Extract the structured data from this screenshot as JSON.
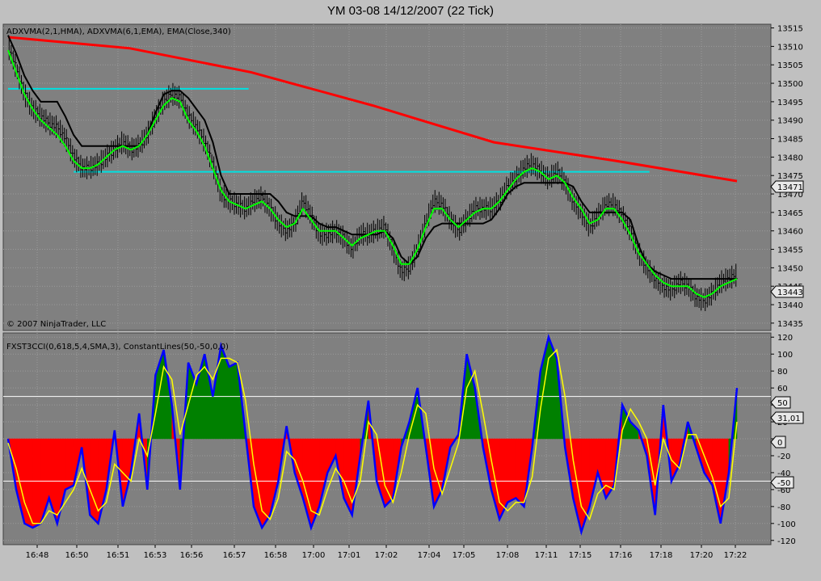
{
  "window": {
    "title": "YM 03-08  14/12/2007  (22 Tick)"
  },
  "price_panel": {
    "indicator_label": "ADXVMA(2,1,HMA), ADXVMA(6,1,EMA), EMA(Close,340)",
    "copyright": "© 2007 NinjaTrader, LLC",
    "badges": [
      "13471",
      "13443"
    ]
  },
  "cci_panel": {
    "indicator_label": "FXST3CCI(0,618,5,4,SMA,3), ConstantLines(50,-50,0,0)",
    "badges": [
      "50",
      "31,01",
      "0",
      "-50"
    ]
  },
  "colors": {
    "bg_panel": "#808080",
    "bars": "#000000",
    "fast_ma": "#00ff00",
    "slow_ma": "#000000",
    "ema": "#ff0000",
    "levels": "#00e0e0",
    "cci": "#0000ff",
    "signal": "#ffff00",
    "fill_pos": "#008000",
    "fill_neg": "#ff0000"
  },
  "chart_data": [
    {
      "type": "line",
      "x_ticks": [
        "16:48",
        "16:50",
        "16:51",
        "16:53",
        "16:56",
        "16:57",
        "16:58",
        "17:00",
        "17:01",
        "17:02",
        "17:04",
        "17:05",
        "17:08",
        "17:11",
        "17:15",
        "17:16",
        "17:18",
        "17:20",
        "17:22"
      ],
      "ylim": [
        13433,
        13516
      ],
      "y_ticks": [
        13435,
        13440,
        13445,
        13450,
        13455,
        13460,
        13465,
        13470,
        13475,
        13480,
        13485,
        13490,
        13495,
        13500,
        13505,
        13510,
        13515
      ],
      "horizontal_levels": [
        {
          "y": 13498.5,
          "x_from": 0,
          "x_to": 0.33
        },
        {
          "y": 13476,
          "x_from": 0.09,
          "x_to": 0.88
        }
      ],
      "series": [
        {
          "key": "close",
          "values": [
            13510,
            13504,
            13497,
            13493,
            13491,
            13489,
            13488,
            13485,
            13480,
            13477,
            13477,
            13478,
            13480,
            13482,
            13484,
            13482,
            13483,
            13486,
            13491,
            13495,
            13497,
            13496,
            13491,
            13488,
            13484,
            13478,
            13470,
            13468,
            13467,
            13466,
            13468,
            13469,
            13466,
            13462,
            13460,
            13462,
            13468,
            13464,
            13459,
            13459,
            13460,
            13458,
            13455,
            13459,
            13459,
            13460,
            13461,
            13455,
            13449,
            13450,
            13455,
            13462,
            13468,
            13467,
            13463,
            13460,
            13463,
            13466,
            13466,
            13466,
            13468,
            13472,
            13474,
            13477,
            13478,
            13476,
            13474,
            13476,
            13473,
            13468,
            13465,
            13461,
            13464,
            13467,
            13467,
            13464,
            13460,
            13454,
            13450,
            13447,
            13445,
            13444,
            13446,
            13445,
            13442,
            13441,
            13443,
            13446,
            13447,
            13448
          ]
        },
        {
          "key": "ma_fast",
          "values": [
            13509,
            13503,
            13497,
            13493,
            13490,
            13488,
            13486,
            13483,
            13479,
            13477,
            13477,
            13478,
            13480,
            13482,
            13483,
            13482,
            13483,
            13486,
            13490,
            13494,
            13496,
            13495,
            13490,
            13487,
            13483,
            13477,
            13471,
            13468,
            13467,
            13466,
            13467,
            13468,
            13466,
            13463,
            13461,
            13462,
            13466,
            13463,
            13460,
            13460,
            13460,
            13458,
            13456,
            13458,
            13459,
            13460,
            13460,
            13456,
            13451,
            13451,
            13455,
            13461,
            13466,
            13466,
            13463,
            13461,
            13463,
            13465,
            13466,
            13466,
            13468,
            13471,
            13474,
            13476,
            13477,
            13476,
            13474,
            13475,
            13473,
            13469,
            13466,
            13462,
            13463,
            13466,
            13466,
            13463,
            13459,
            13454,
            13451,
            13448,
            13446,
            13445,
            13445,
            13445,
            13443,
            13442,
            13443,
            13445,
            13446,
            13447
          ]
        },
        {
          "key": "ma_slow",
          "values": [
            13513,
            13508,
            13502,
            13498,
            13495,
            13495,
            13495,
            13491,
            13486,
            13483,
            13483,
            13483,
            13483,
            13483,
            13483,
            13483,
            13483,
            13486,
            13492,
            13497,
            13498,
            13498,
            13496,
            13493,
            13490,
            13484,
            13475,
            13470,
            13470,
            13470,
            13470,
            13470,
            13470,
            13468,
            13465,
            13464,
            13464,
            13464,
            13462,
            13461,
            13461,
            13460,
            13459,
            13459,
            13459,
            13459,
            13460,
            13458,
            13453,
            13451,
            13453,
            13458,
            13461,
            13462,
            13462,
            13462,
            13462,
            13462,
            13462,
            13463,
            13466,
            13470,
            13472,
            13473,
            13473,
            13473,
            13473,
            13473,
            13473,
            13472,
            13468,
            13465,
            13465,
            13465,
            13465,
            13465,
            13463,
            13456,
            13451,
            13449,
            13448,
            13447,
            13447,
            13447,
            13447,
            13447,
            13447,
            13447,
            13447,
            13447
          ]
        },
        {
          "key": "ema340",
          "values": [
            13512.5,
            13509.5,
            13503,
            13494,
            13484,
            13479,
            13473.5
          ]
        }
      ]
    },
    {
      "type": "line",
      "x_ticks": [
        "16:48",
        "16:50",
        "16:51",
        "16:53",
        "16:56",
        "16:57",
        "16:58",
        "17:00",
        "17:01",
        "17:02",
        "17:04",
        "17:05",
        "17:08",
        "17:11",
        "17:15",
        "17:16",
        "17:18",
        "17:20",
        "17:22"
      ],
      "ylim": [
        -125,
        125
      ],
      "y_ticks": [
        -120,
        -100,
        -80,
        -60,
        -40,
        -20,
        0,
        20,
        40,
        60,
        80,
        100,
        120
      ],
      "constant_lines": [
        50,
        -50,
        0
      ],
      "series": [
        {
          "key": "cci",
          "values": [
            0,
            -60,
            -100,
            -105,
            -100,
            -70,
            -100,
            -60,
            -55,
            -10,
            -90,
            -100,
            -60,
            10,
            -80,
            -40,
            30,
            -60,
            75,
            105,
            40,
            -60,
            90,
            65,
            100,
            50,
            110,
            85,
            90,
            5,
            -80,
            -105,
            -90,
            -50,
            15,
            -40,
            -70,
            -105,
            -80,
            -40,
            -20,
            -70,
            -90,
            -20,
            45,
            -50,
            -80,
            -70,
            -10,
            20,
            60,
            -10,
            -80,
            -60,
            -10,
            5,
            100,
            60,
            -10,
            -60,
            -95,
            -75,
            -70,
            -80,
            -10,
            80,
            120,
            95,
            -10,
            -70,
            -110,
            -80,
            -40,
            -70,
            -55,
            40,
            20,
            10,
            -20,
            -90,
            40,
            -50,
            -30,
            20,
            -10,
            -40,
            -55,
            -100,
            -40,
            60
          ]
        },
        {
          "key": "signal",
          "values": [
            -5,
            -35,
            -75,
            -100,
            -100,
            -85,
            -90,
            -75,
            -60,
            -35,
            -60,
            -85,
            -75,
            -30,
            -40,
            -50,
            0,
            -20,
            30,
            85,
            70,
            5,
            40,
            75,
            85,
            70,
            95,
            95,
            90,
            45,
            -30,
            -85,
            -95,
            -70,
            -15,
            -25,
            -50,
            -85,
            -90,
            -60,
            -35,
            -50,
            -75,
            -50,
            20,
            5,
            -55,
            -75,
            -40,
            5,
            40,
            30,
            -35,
            -65,
            -35,
            -5,
            60,
            80,
            30,
            -25,
            -75,
            -85,
            -75,
            -75,
            -45,
            35,
            95,
            105,
            50,
            -25,
            -80,
            -95,
            -65,
            -55,
            -60,
            10,
            35,
            20,
            0,
            -55,
            0,
            -25,
            -35,
            5,
            5,
            -20,
            -45,
            -80,
            -70,
            20
          ]
        }
      ]
    }
  ]
}
